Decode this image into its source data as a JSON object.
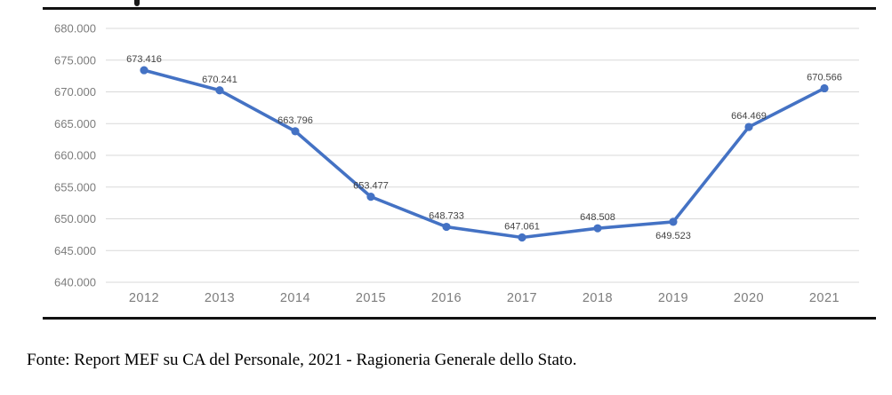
{
  "figure": {
    "source_note": "Fonte: Report MEF su CA del Personale, 2021 - Ragioneria Generale dello Stato."
  },
  "chart_data": {
    "type": "line",
    "title": "",
    "xlabel": "",
    "ylabel": "",
    "categories": [
      "2012",
      "2013",
      "2014",
      "2015",
      "2016",
      "2017",
      "2018",
      "2019",
      "2020",
      "2021"
    ],
    "values": [
      673416,
      670241,
      663796,
      653477,
      648733,
      647061,
      648508,
      649523,
      664469,
      670566
    ],
    "point_labels": [
      "673.416",
      "670.241",
      "663.796",
      "653.477",
      "648.733",
      "647.061",
      "648.508",
      "649.523",
      "664.469",
      "670.566"
    ],
    "labels_below_indices": [
      7
    ],
    "ylim": [
      640000,
      680000
    ],
    "ytick_step": 5000,
    "ytick_labels": [
      "680.000",
      "675.000",
      "670.000",
      "665.000",
      "660.000",
      "655.000",
      "650.000",
      "645.000",
      "640.000"
    ],
    "grid": "horizontal",
    "legend": "none",
    "line_color": "#4472C4",
    "marker_color": "#4472C4",
    "gridline_color": "#D9D9D9"
  }
}
